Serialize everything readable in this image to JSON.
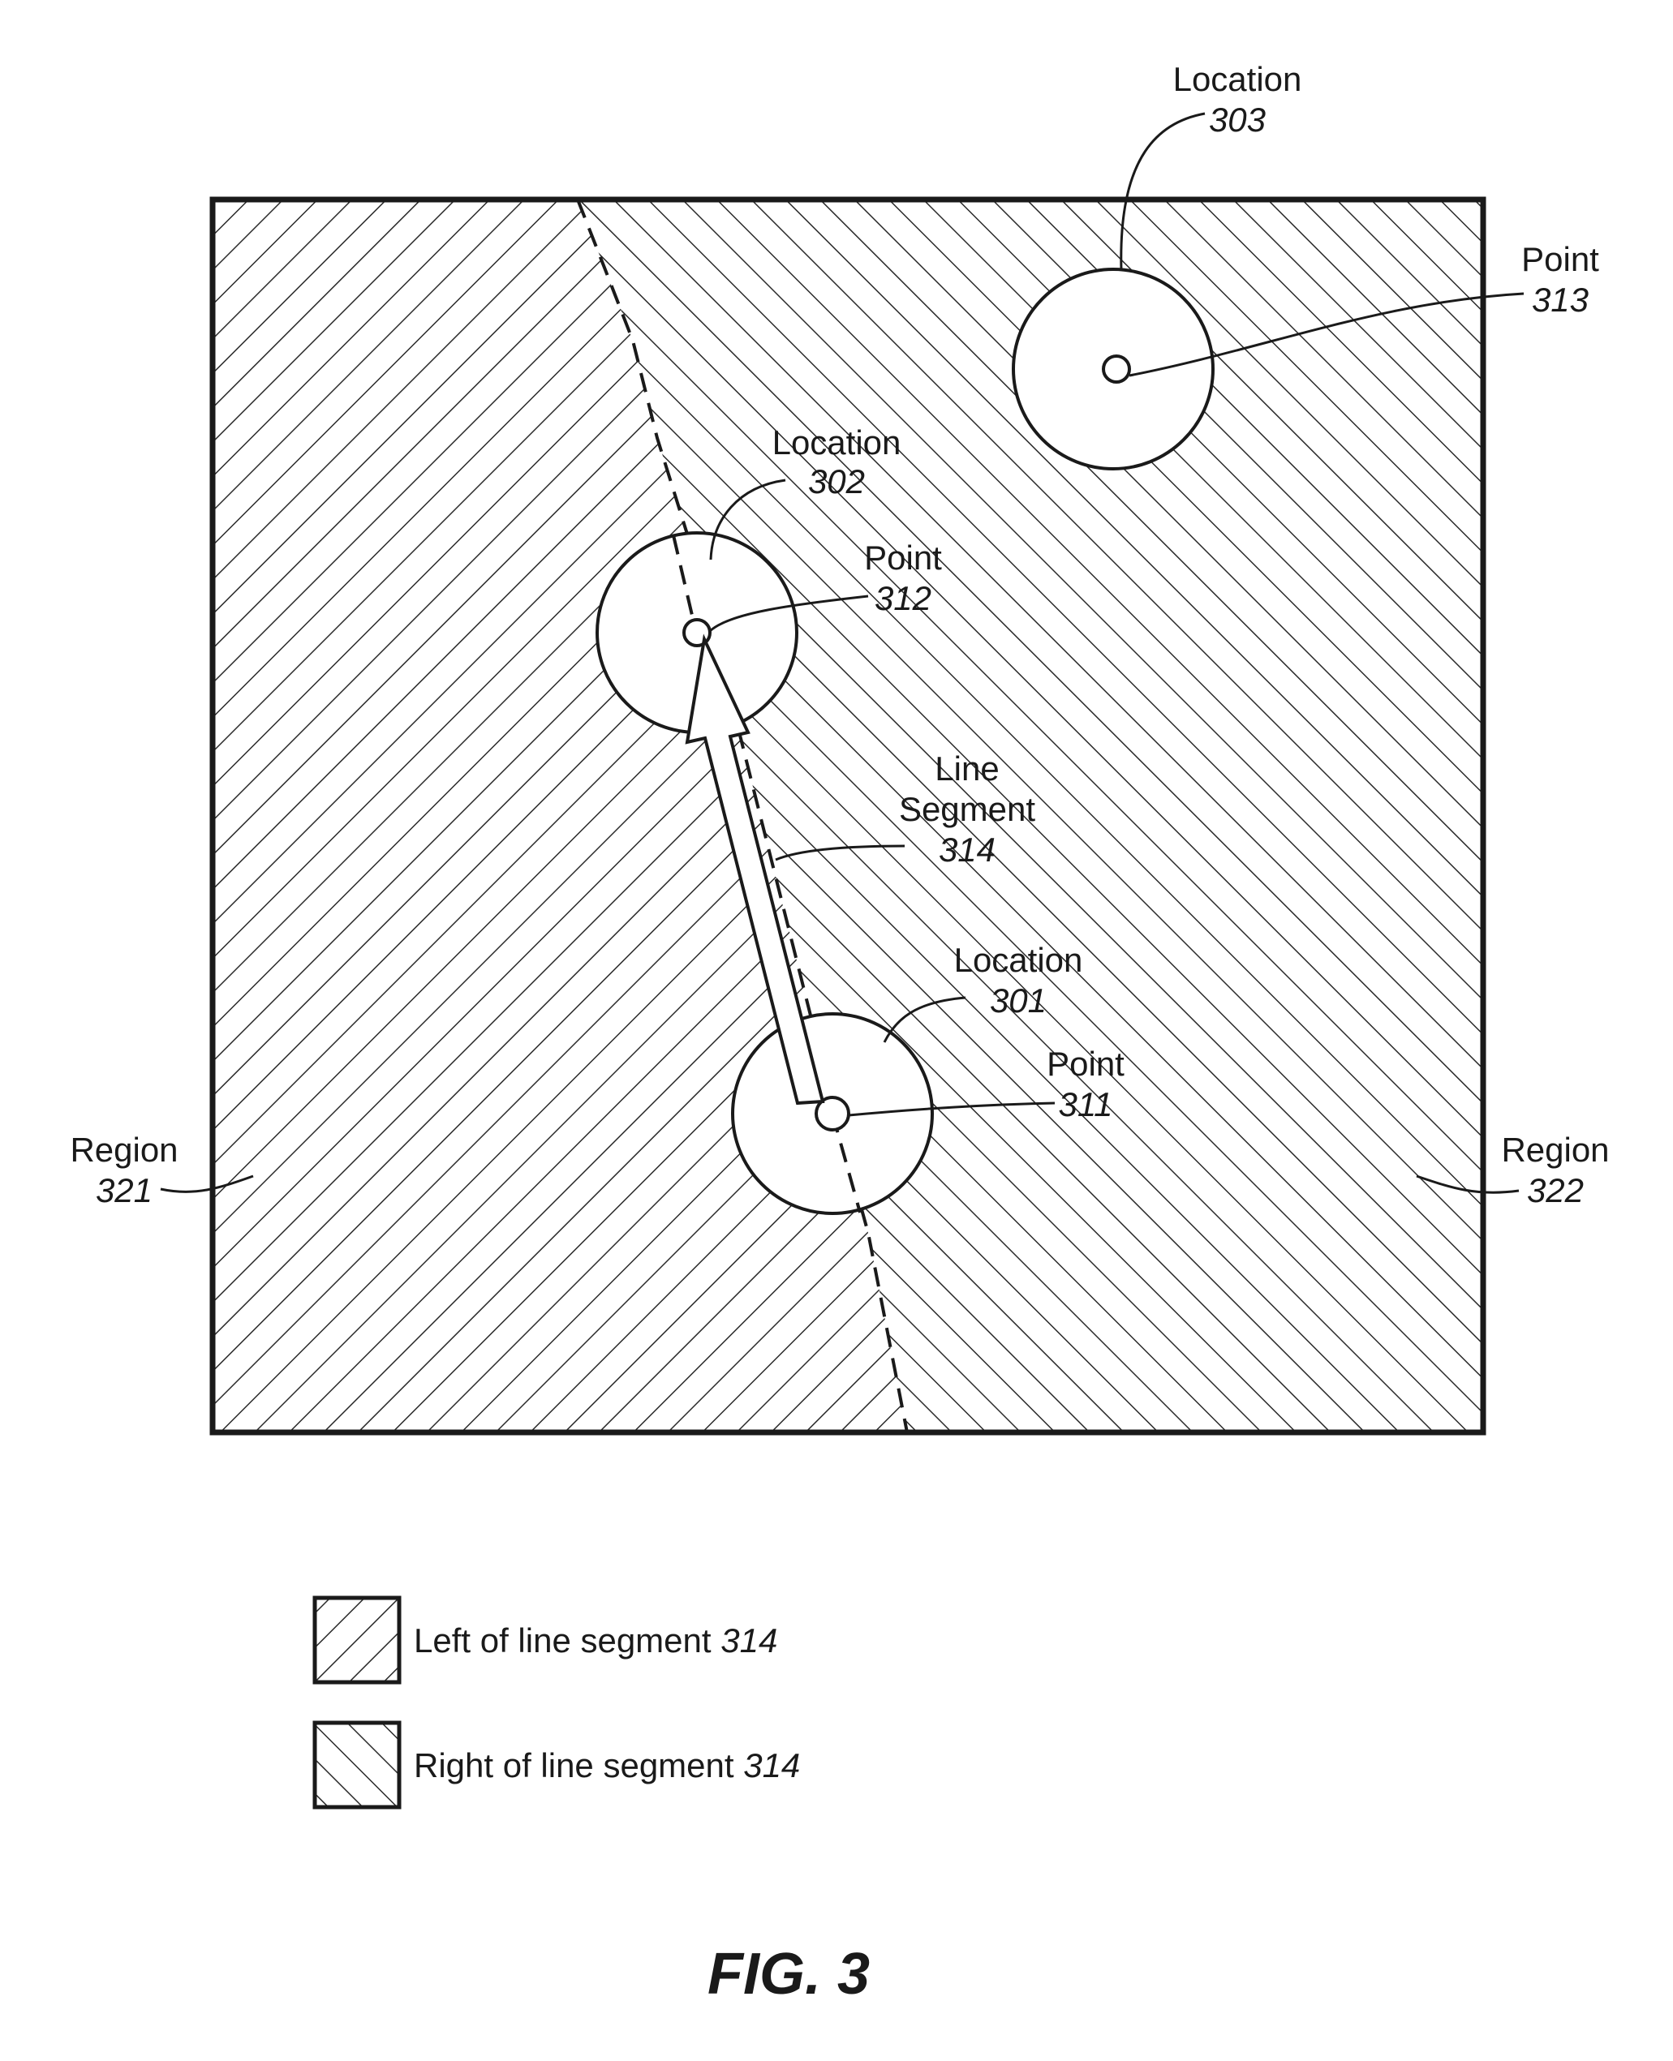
{
  "figure": {
    "caption": "FIG. 3",
    "locations": [
      {
        "label": "Location",
        "ref": "301"
      },
      {
        "label": "Location",
        "ref": "302"
      },
      {
        "label": "Location",
        "ref": "303"
      }
    ],
    "points": [
      {
        "label": "Point",
        "ref": "311"
      },
      {
        "label": "Point",
        "ref": "312"
      },
      {
        "label": "Point",
        "ref": "313"
      }
    ],
    "line_segment": {
      "line1": "Line",
      "line2": "Segment",
      "ref": "314"
    },
    "regions": [
      {
        "label": "Region",
        "ref": "321"
      },
      {
        "label": "Region",
        "ref": "322"
      }
    ],
    "legend": [
      {
        "text": "Left of line segment ",
        "ref": "314"
      },
      {
        "text": "Right of line segment ",
        "ref": "314"
      }
    ]
  }
}
